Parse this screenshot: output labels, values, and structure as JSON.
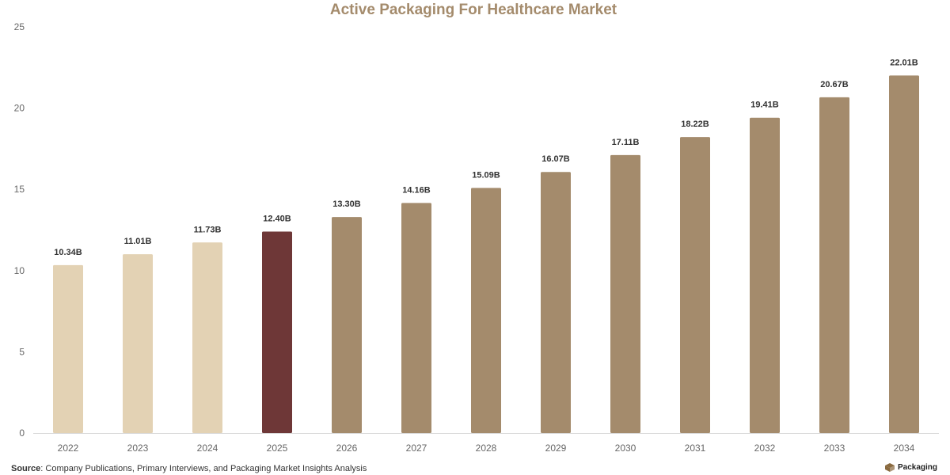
{
  "chart_data": {
    "type": "bar",
    "title": "Active Packaging For Healthcare Market",
    "categories": [
      "2022",
      "2023",
      "2024",
      "2025",
      "2026",
      "2027",
      "2028",
      "2029",
      "2030",
      "2031",
      "2032",
      "2033",
      "2034"
    ],
    "values": [
      10.34,
      11.01,
      11.73,
      12.4,
      13.3,
      14.16,
      15.09,
      16.07,
      17.11,
      18.22,
      19.41,
      20.67,
      22.01
    ],
    "value_labels": [
      "10.34B",
      "11.01B",
      "11.73B",
      "12.40B",
      "13.30B",
      "14.16B",
      "15.09B",
      "16.07B",
      "17.11B",
      "18.22B",
      "19.41B",
      "20.67B",
      "22.01B"
    ],
    "bar_colors": [
      "#e3d2b4",
      "#e3d2b4",
      "#e3d2b4",
      "#6e3737",
      "#a48b6c",
      "#a48b6c",
      "#a48b6c",
      "#a48b6c",
      "#a48b6c",
      "#a48b6c",
      "#a48b6c",
      "#a48b6c",
      "#a48b6c"
    ],
    "ylim": [
      0,
      25
    ],
    "yticks": [
      0,
      5,
      10,
      15,
      20,
      25
    ],
    "xlabel": "",
    "ylabel": "",
    "grid": false,
    "legend": "none"
  },
  "colors": {
    "title": "#a48b6c",
    "baseline": "#d9d9d9",
    "logo": "#8a6a3f"
  },
  "source": {
    "label": "Source",
    "text": ": Company Publications, Primary Interviews, and Packaging Market Insights Analysis"
  },
  "logo": {
    "text": "Packaging",
    "icon": "box-icon"
  }
}
